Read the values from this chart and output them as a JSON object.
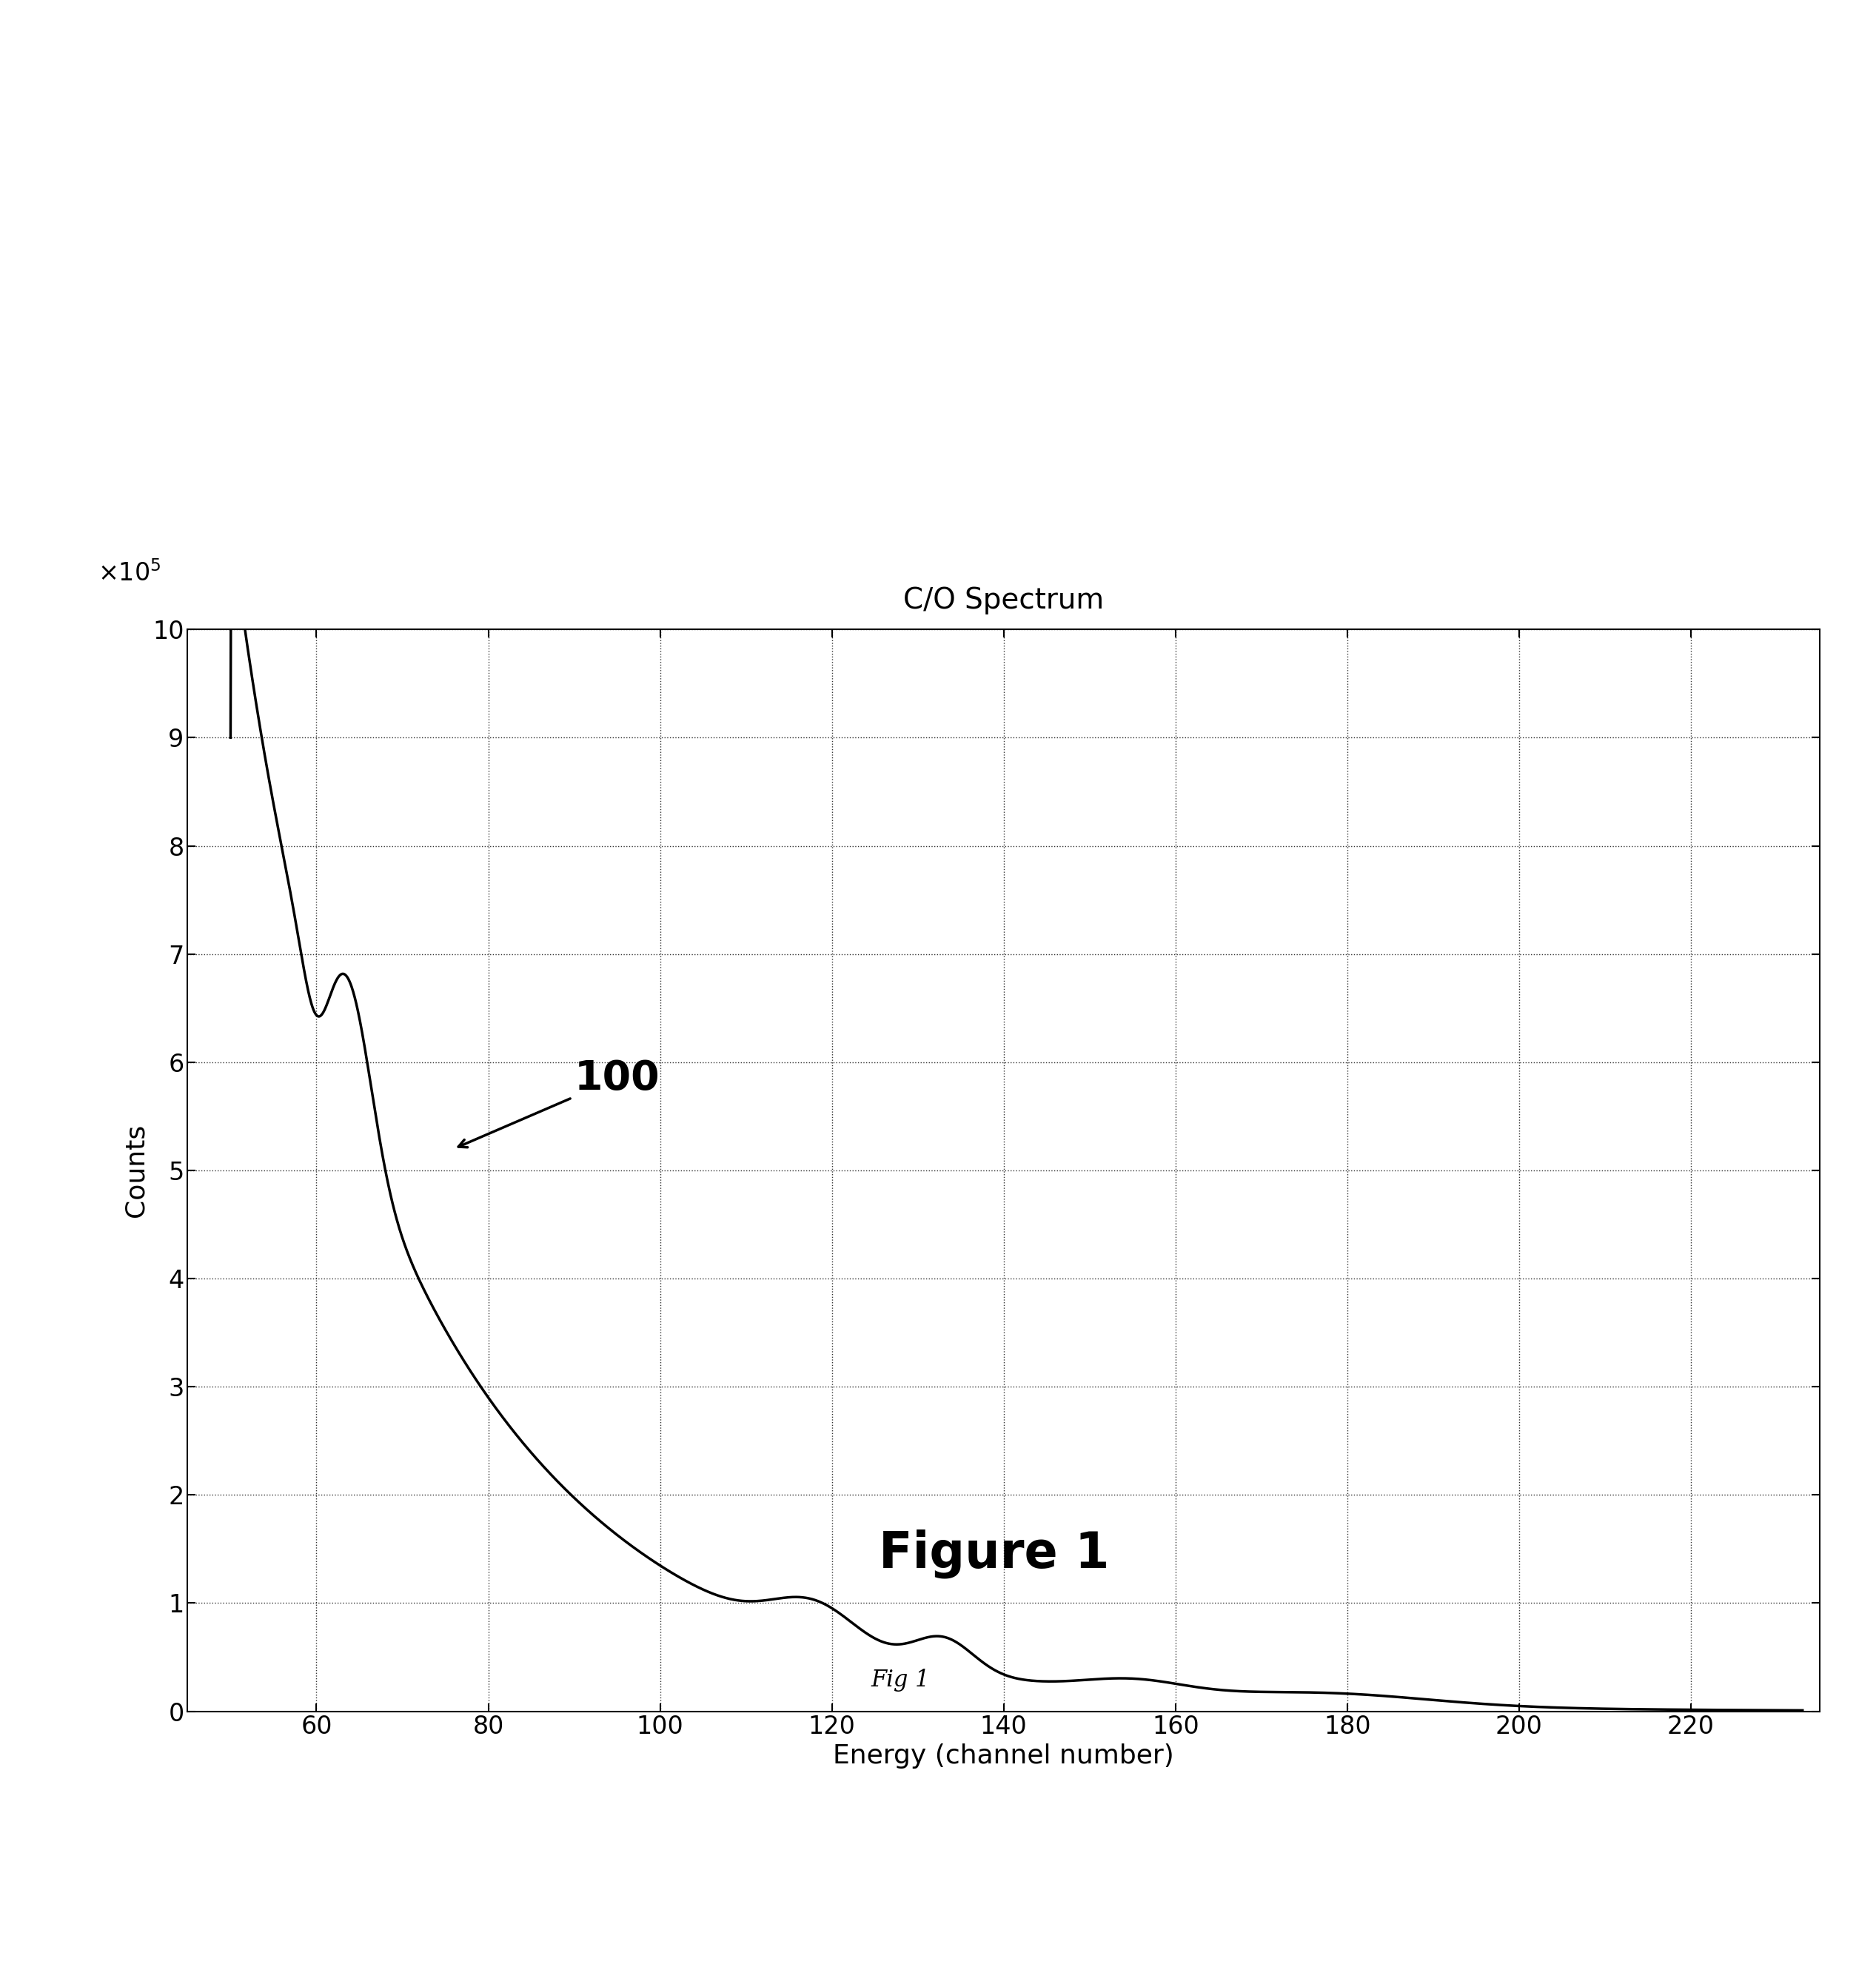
{
  "title": "C/O Spectrum",
  "xlabel": "Energy (channel number)",
  "ylabel": "Counts",
  "xlim": [
    45,
    235
  ],
  "ylim": [
    0,
    10
  ],
  "xticks": [
    60,
    80,
    100,
    120,
    140,
    160,
    180,
    200,
    220
  ],
  "yticks": [
    0,
    1,
    2,
    3,
    4,
    5,
    6,
    7,
    8,
    9,
    10
  ],
  "annotation_text": "100",
  "fig_label": "Fig 1",
  "figure_label": "Figure 1",
  "line_color": "#000000",
  "background_color": "#ffffff",
  "title_fontsize": 28,
  "label_fontsize": 26,
  "tick_fontsize": 24,
  "annotation_fontsize": 40,
  "fig_label_fontsize": 22,
  "figure_label_fontsize": 48
}
